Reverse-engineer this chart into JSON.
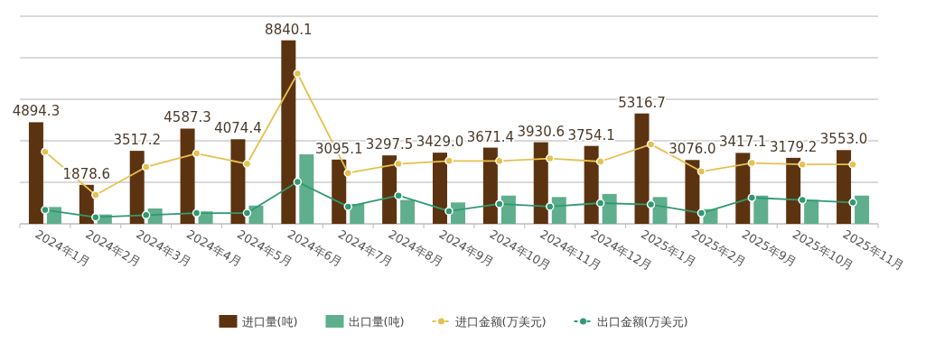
{
  "chart_data": {
    "type": "bar",
    "categories": [
      "2024年1月",
      "2024年2月",
      "2024年3月",
      "2024年4月",
      "2024年5月",
      "2024年6月",
      "2024年7月",
      "2024年8月",
      "2024年9月",
      "2024年10月",
      "2024年11月",
      "2024年12月",
      "2025年1月",
      "2025年2月",
      "2025年9月",
      "2025年10月",
      "2025年11月"
    ],
    "series": [
      {
        "name": "进口量(吨)",
        "color": "#5c3310",
        "values": [
          4894.3,
          1878.6,
          3517.2,
          4587.3,
          4074.4,
          8840.1,
          3095.1,
          3297.5,
          3429.0,
          3671.4,
          3930.6,
          3754.1,
          5316.7,
          3076.0,
          3417.1,
          3179.2,
          3553.0
        ],
        "value_labels": [
          "4894.3",
          "1878.6",
          "3517.2",
          "4587.3",
          "4074.4",
          "8840.1",
          "3095.1",
          "3297.5",
          "3429.0",
          "3671.4",
          "3930.6",
          "3754.1",
          "5316.7",
          "3076.0",
          "3417.1",
          "3179.2",
          "3553.0"
        ]
      },
      {
        "name": "出口量(吨)",
        "color": "#5fae8e",
        "values": [
          810,
          450,
          740,
          600,
          880,
          3350,
          960,
          1150,
          1030,
          1360,
          1290,
          1440,
          1290,
          710,
          1360,
          1150,
          1360
        ]
      },
      {
        "name": "进口金额(万美元)",
        "type": "line",
        "color": "#e6c14f",
        "values": [
          3470,
          1390,
          2740,
          3390,
          2890,
          7240,
          2450,
          2890,
          3030,
          3030,
          3150,
          3000,
          3830,
          2520,
          2930,
          2860,
          2860
        ]
      },
      {
        "name": "出口金额(万美元)",
        "type": "line",
        "color": "#2f9a72",
        "values": [
          670,
          320,
          420,
          520,
          520,
          2020,
          830,
          1360,
          610,
          960,
          830,
          1000,
          930,
          520,
          1260,
          1150,
          1030
        ]
      }
    ],
    "ylim": [
      0,
      10000
    ],
    "yticks": [
      {
        "value": 0,
        "label": null
      },
      {
        "value": 2000,
        "label": null
      },
      {
        "value": 4000,
        "label": null
      },
      {
        "value": 6000,
        "label": null
      },
      {
        "value": 8000,
        "label": null
      },
      {
        "value": 10000,
        "label": null
      }
    ],
    "tick_labels": "x",
    "grid": "y",
    "legend": "bottom",
    "marker": "circle"
  }
}
